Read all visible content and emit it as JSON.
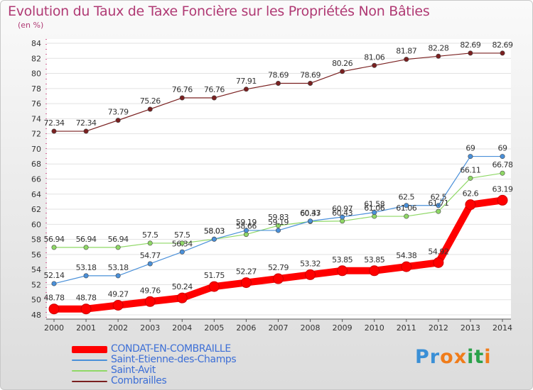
{
  "chart_data": {
    "type": "line",
    "title": "Evolution du Taux de Taxe Foncière sur les Propriétés Non Bâties",
    "ylabel": "(en %)",
    "xlabel": "",
    "ylim": [
      48,
      84
    ],
    "yticks": [
      48,
      50,
      52,
      54,
      56,
      58,
      60,
      62,
      64,
      66,
      68,
      70,
      72,
      74,
      76,
      78,
      80,
      82,
      84
    ],
    "categories": [
      "2000",
      "2001",
      "2002",
      "2003",
      "2004",
      "2005",
      "2006",
      "2007",
      "2008",
      "2009",
      "2010",
      "2011",
      "2012",
      "2013",
      "2014"
    ],
    "series": [
      {
        "name": "CONDAT-EN-COMBRAILLE",
        "color": "#ff0000",
        "values": [
          48.78,
          48.78,
          49.27,
          49.76,
          50.24,
          51.75,
          52.27,
          52.79,
          53.32,
          53.85,
          53.85,
          54.38,
          54.92,
          62.6,
          63.19
        ],
        "labels": [
          "48.78",
          "48.78",
          "49.27",
          "49.76",
          "50.24",
          "51.75",
          "52.27",
          "52.79",
          "53.32",
          "53.85",
          "53.85",
          "54.38",
          "54.92",
          "62.6",
          "63.19"
        ]
      },
      {
        "name": "Saint-Etienne-des-Champs",
        "color": "#4a90d9",
        "values": [
          52.14,
          53.18,
          53.18,
          54.77,
          56.34,
          58.03,
          59.19,
          59.19,
          60.43,
          60.97,
          61.58,
          62.5,
          62.5,
          69,
          69
        ],
        "labels": [
          "52.14",
          "53.18",
          "53.18",
          "54.77",
          "56.34",
          "58.03",
          "59.19",
          "59.19",
          "60.43",
          "60.97",
          "61.58",
          "62.5",
          "62.5",
          "69",
          "69"
        ]
      },
      {
        "name": "Saint-Avit",
        "color": "#8fd866",
        "values": [
          56.94,
          56.94,
          56.94,
          57.5,
          57.5,
          58.03,
          58.66,
          59.83,
          60.37,
          60.43,
          61.06,
          61.06,
          61.71,
          66.11,
          66.78
        ],
        "labels": [
          "56.94",
          "56.94",
          "56.94",
          "57.5",
          "57.5",
          "58.03",
          "58.66",
          "59.83",
          "60.37",
          "60.43",
          "61.06",
          "61.06",
          "61.71",
          "66.11",
          "66.78"
        ]
      },
      {
        "name": "Combrailles",
        "color": "#7a2020",
        "values": [
          72.34,
          72.34,
          73.79,
          75.26,
          76.76,
          76.76,
          77.91,
          78.69,
          78.69,
          80.26,
          81.06,
          81.87,
          82.28,
          82.69,
          82.69
        ],
        "labels": [
          "72.34",
          "72.34",
          "73.79",
          "75.26",
          "76.76",
          "76.76",
          "77.91",
          "78.69",
          "78.69",
          "80.26",
          "81.06",
          "81.87",
          "82.28",
          "82.69",
          "82.69"
        ]
      }
    ],
    "legend_position": "bottom-left"
  },
  "logo": {
    "text": "Proxiti",
    "letters": [
      "P",
      "r",
      "o",
      "x",
      "i",
      "t",
      "i"
    ],
    "colors": [
      "#3a8fd6",
      "#3a8fd6",
      "#f07c1a",
      "#f07c1a",
      "#2aa14a",
      "#2aa14a",
      "#f07c1a"
    ]
  }
}
